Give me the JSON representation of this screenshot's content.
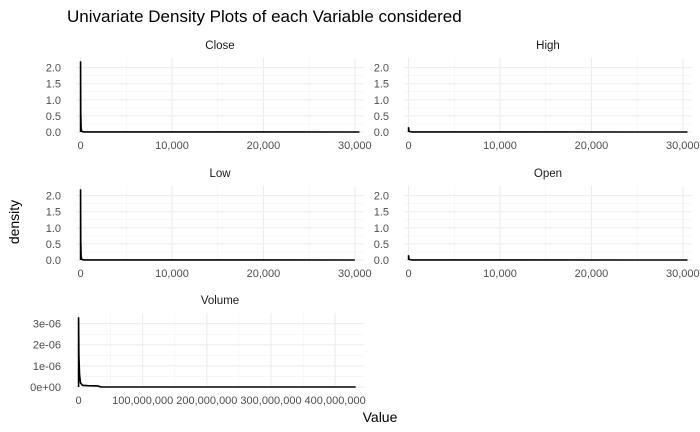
{
  "chart_data": {
    "type": "line",
    "title": "Univariate Density Plots of each Variable considered",
    "xlabel": "Value",
    "ylabel": "density",
    "grid": true,
    "facets": [
      {
        "name": "Close",
        "xlim": [
          -500,
          31000
        ],
        "x_ticks": [
          0,
          10000,
          20000,
          30000
        ],
        "x_tick_labels": [
          "0",
          "10,000",
          "20,000",
          "30,000"
        ],
        "ylim": [
          0,
          2.3
        ],
        "y_ticks": [
          0.0,
          0.5,
          1.0,
          1.5,
          2.0
        ],
        "y_tick_labels": [
          "0.0",
          "0.5",
          "1.0",
          "1.5",
          "2.0"
        ],
        "x": [
          0,
          20,
          60,
          120,
          200,
          400,
          30500
        ],
        "y": [
          2.2,
          0.6,
          0.12,
          0.03,
          0.01,
          0.002,
          0.0
        ]
      },
      {
        "name": "High",
        "xlim": [
          -500,
          31000
        ],
        "x_ticks": [
          0,
          10000,
          20000,
          30000
        ],
        "x_tick_labels": [
          "0",
          "10,000",
          "20,000",
          "30,000"
        ],
        "ylim": [
          0,
          2.3
        ],
        "y_ticks": [
          0.0,
          0.5,
          1.0,
          1.5,
          2.0
        ],
        "y_tick_labels": [
          "0.0",
          "0.5",
          "1.0",
          "1.5",
          "2.0"
        ],
        "x": [
          0,
          20,
          60,
          120,
          200,
          400,
          30500
        ],
        "y": [
          0.15,
          0.08,
          0.03,
          0.015,
          0.008,
          0.002,
          0.0
        ]
      },
      {
        "name": "Low",
        "xlim": [
          -500,
          31000
        ],
        "x_ticks": [
          0,
          10000,
          20000,
          30000
        ],
        "x_tick_labels": [
          "0",
          "10,000",
          "20,000",
          "30,000"
        ],
        "ylim": [
          0,
          2.3
        ],
        "y_ticks": [
          0.0,
          0.5,
          1.0,
          1.5,
          2.0
        ],
        "y_tick_labels": [
          "0.0",
          "0.5",
          "1.0",
          "1.5",
          "2.0"
        ],
        "x": [
          0,
          20,
          60,
          120,
          200,
          400,
          30000
        ],
        "y": [
          2.2,
          0.6,
          0.12,
          0.03,
          0.01,
          0.002,
          0.0
        ]
      },
      {
        "name": "Open",
        "xlim": [
          -500,
          31000
        ],
        "x_ticks": [
          0,
          10000,
          20000,
          30000
        ],
        "x_tick_labels": [
          "0",
          "10,000",
          "20,000",
          "30,000"
        ],
        "ylim": [
          0,
          2.3
        ],
        "y_ticks": [
          0.0,
          0.5,
          1.0,
          1.5,
          2.0
        ],
        "y_tick_labels": [
          "0.0",
          "0.5",
          "1.0",
          "1.5",
          "2.0"
        ],
        "x": [
          0,
          20,
          60,
          120,
          200,
          400,
          30500
        ],
        "y": [
          0.15,
          0.08,
          0.03,
          0.015,
          0.008,
          0.002,
          0.0
        ]
      },
      {
        "name": "Volume",
        "xlim": [
          -4000000,
          445000000
        ],
        "x_ticks": [
          0,
          100000000,
          200000000,
          300000000,
          400000000
        ],
        "x_tick_labels": [
          "0",
          "100,000,000",
          "200,000,000",
          "300,000,000",
          "400,000,000"
        ],
        "ylim": [
          0,
          3.5e-06
        ],
        "y_ticks": [
          0,
          1e-06,
          2e-06,
          3e-06
        ],
        "y_tick_labels": [
          "0e+00",
          "1e-06",
          "2e-06",
          "3e-06"
        ],
        "x": [
          0,
          500000,
          1500000,
          3000000,
          6000000,
          15000000,
          30000000,
          34000000,
          37000000,
          432000000
        ],
        "y": [
          3.3e-06,
          1.5e-06,
          6e-07,
          2e-07,
          8e-08,
          6e-08,
          5e-08,
          1e-08,
          0,
          0
        ]
      }
    ]
  }
}
